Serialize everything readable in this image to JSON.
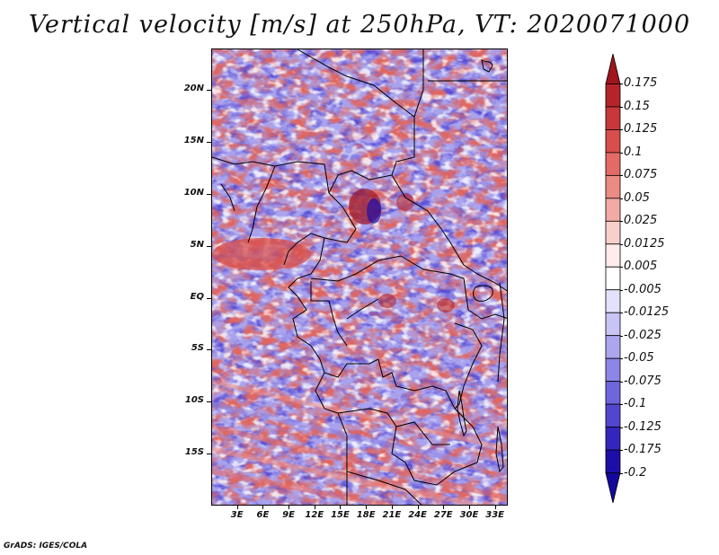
{
  "title": "Vertical velocity [m/s] at 250hPa, VT: 2020071000",
  "credit": "GrADS: IGES/COLA",
  "map": {
    "lat_labels": [
      "20N",
      "15N",
      "10N",
      "5N",
      "EQ",
      "5S",
      "10S",
      "15S"
    ],
    "lat_values": [
      20,
      15,
      10,
      5,
      0,
      -5,
      -10,
      -15
    ],
    "lon_labels": [
      "3E",
      "6E",
      "9E",
      "12E",
      "15E",
      "18E",
      "21E",
      "24E",
      "27E",
      "30E",
      "33E"
    ],
    "lon_values": [
      3,
      6,
      9,
      12,
      15,
      18,
      21,
      24,
      27,
      30,
      33
    ],
    "lon_range": [
      0,
      34.5
    ],
    "lat_range": [
      -20,
      24
    ]
  },
  "colorbar": {
    "labels": [
      "0.175",
      "0.15",
      "0.125",
      "0.1",
      "0.075",
      "0.05",
      "0.025",
      "0.0125",
      "0.005",
      "-0.005",
      "-0.0125",
      "-0.025",
      "-0.05",
      "-0.075",
      "-0.1",
      "-0.125",
      "-0.175",
      "-0.2"
    ],
    "colors": [
      "#a0141e",
      "#b4242a",
      "#c8383a",
      "#d84e4c",
      "#e46a66",
      "#ec8a84",
      "#f2aaa4",
      "#f8cfca",
      "#fdeceb",
      "#ffffff",
      "#e4e2fb",
      "#c8c4f5",
      "#aca6ef",
      "#8e86e6",
      "#7066dc",
      "#5246cf",
      "#3426bd",
      "#1e0ea8",
      "#14089c"
    ]
  }
}
